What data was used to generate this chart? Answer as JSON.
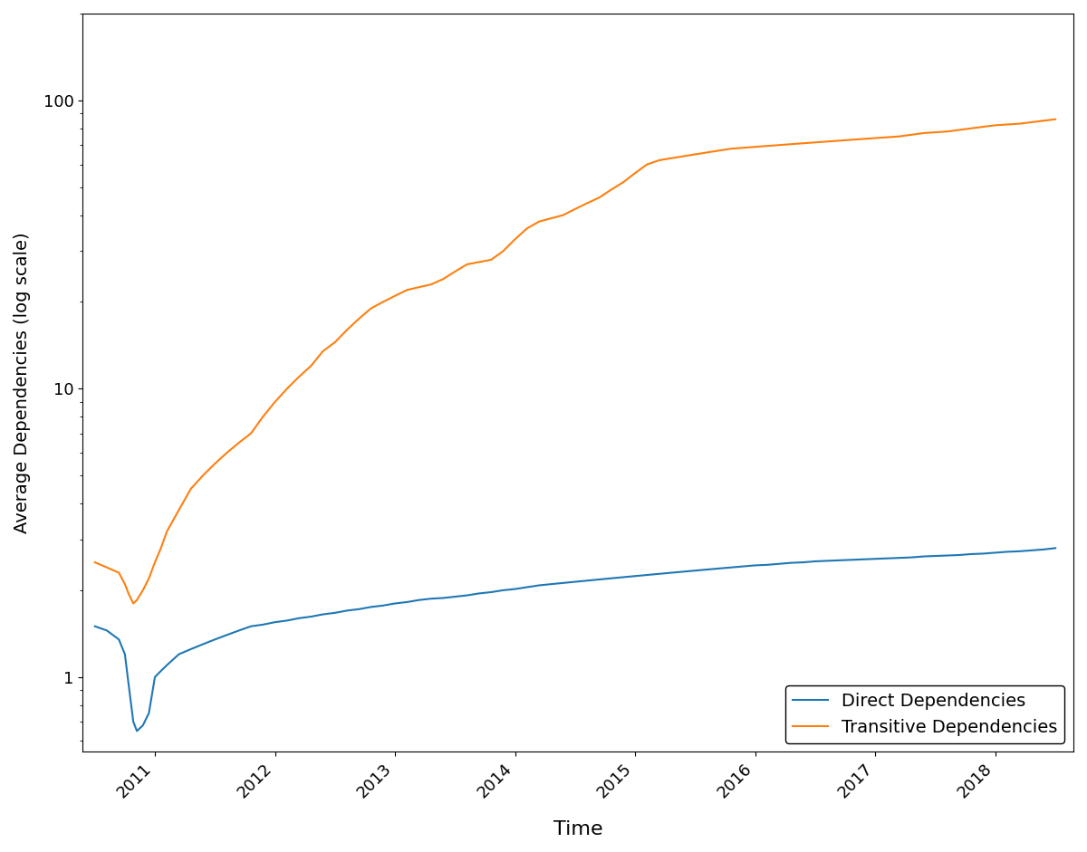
{
  "title": "",
  "xlabel": "Time",
  "ylabel": "Average Dependencies (log scale)",
  "legend_labels": [
    "Direct Dependencies",
    "Transitive Dependencies"
  ],
  "line_colors": [
    "#1f77b4",
    "#ff7f0e"
  ],
  "line_width": 1.5,
  "ylim": [
    0.55,
    200
  ],
  "xlim": [
    2010.4,
    2018.65
  ],
  "xticks": [
    2011,
    2012,
    2013,
    2014,
    2015,
    2016,
    2017,
    2018
  ],
  "yticks": [
    1,
    10,
    100
  ],
  "direct_x": [
    2010.5,
    2010.6,
    2010.7,
    2010.75,
    2010.78,
    2010.82,
    2010.85,
    2010.9,
    2010.95,
    2011.0,
    2011.05,
    2011.1,
    2011.2,
    2011.3,
    2011.4,
    2011.5,
    2011.6,
    2011.7,
    2011.8,
    2011.9,
    2012.0,
    2012.1,
    2012.2,
    2012.3,
    2012.4,
    2012.5,
    2012.6,
    2012.7,
    2012.8,
    2012.9,
    2013.0,
    2013.1,
    2013.2,
    2013.3,
    2013.4,
    2013.5,
    2013.6,
    2013.7,
    2013.8,
    2013.9,
    2014.0,
    2014.1,
    2014.2,
    2014.3,
    2014.4,
    2014.5,
    2014.6,
    2014.7,
    2014.8,
    2014.9,
    2015.0,
    2015.1,
    2015.2,
    2015.3,
    2015.4,
    2015.5,
    2015.6,
    2015.7,
    2015.8,
    2015.9,
    2016.0,
    2016.1,
    2016.2,
    2016.3,
    2016.4,
    2016.5,
    2016.6,
    2016.7,
    2016.8,
    2016.9,
    2017.0,
    2017.1,
    2017.2,
    2017.3,
    2017.4,
    2017.5,
    2017.6,
    2017.7,
    2017.8,
    2017.9,
    2018.0,
    2018.1,
    2018.2,
    2018.3,
    2018.4,
    2018.5
  ],
  "direct_y": [
    1.5,
    1.45,
    1.35,
    1.2,
    0.95,
    0.7,
    0.65,
    0.68,
    0.75,
    1.0,
    1.05,
    1.1,
    1.2,
    1.25,
    1.3,
    1.35,
    1.4,
    1.45,
    1.5,
    1.52,
    1.55,
    1.57,
    1.6,
    1.62,
    1.65,
    1.67,
    1.7,
    1.72,
    1.75,
    1.77,
    1.8,
    1.82,
    1.85,
    1.87,
    1.88,
    1.9,
    1.92,
    1.95,
    1.97,
    2.0,
    2.02,
    2.05,
    2.08,
    2.1,
    2.12,
    2.14,
    2.16,
    2.18,
    2.2,
    2.22,
    2.24,
    2.26,
    2.28,
    2.3,
    2.32,
    2.34,
    2.36,
    2.38,
    2.4,
    2.42,
    2.44,
    2.45,
    2.47,
    2.49,
    2.5,
    2.52,
    2.53,
    2.54,
    2.55,
    2.56,
    2.57,
    2.58,
    2.59,
    2.6,
    2.62,
    2.63,
    2.64,
    2.65,
    2.67,
    2.68,
    2.7,
    2.72,
    2.73,
    2.75,
    2.77,
    2.8
  ],
  "transitive_x": [
    2010.5,
    2010.6,
    2010.7,
    2010.75,
    2010.78,
    2010.82,
    2010.85,
    2010.9,
    2010.95,
    2011.0,
    2011.05,
    2011.1,
    2011.2,
    2011.3,
    2011.4,
    2011.5,
    2011.6,
    2011.7,
    2011.8,
    2011.9,
    2012.0,
    2012.1,
    2012.2,
    2012.3,
    2012.4,
    2012.5,
    2012.6,
    2012.7,
    2012.8,
    2012.9,
    2013.0,
    2013.1,
    2013.2,
    2013.3,
    2013.4,
    2013.5,
    2013.6,
    2013.7,
    2013.8,
    2013.9,
    2014.0,
    2014.1,
    2014.2,
    2014.3,
    2014.4,
    2014.5,
    2014.6,
    2014.7,
    2014.8,
    2014.9,
    2015.0,
    2015.1,
    2015.2,
    2015.3,
    2015.4,
    2015.5,
    2015.6,
    2015.7,
    2015.8,
    2015.9,
    2016.0,
    2016.1,
    2016.2,
    2016.3,
    2016.4,
    2016.5,
    2016.6,
    2016.7,
    2016.8,
    2016.9,
    2017.0,
    2017.1,
    2017.2,
    2017.3,
    2017.4,
    2017.5,
    2017.6,
    2017.7,
    2017.8,
    2017.9,
    2018.0,
    2018.1,
    2018.2,
    2018.3,
    2018.4,
    2018.5
  ],
  "transitive_y": [
    2.5,
    2.4,
    2.3,
    2.1,
    1.95,
    1.8,
    1.85,
    2.0,
    2.2,
    2.5,
    2.8,
    3.2,
    3.8,
    4.5,
    5.0,
    5.5,
    6.0,
    6.5,
    7.0,
    8.0,
    9.0,
    10.0,
    11.0,
    12.0,
    13.5,
    14.5,
    16.0,
    17.5,
    19.0,
    20.0,
    21.0,
    22.0,
    22.5,
    23.0,
    24.0,
    25.5,
    27.0,
    27.5,
    28.0,
    30.0,
    33.0,
    36.0,
    38.0,
    39.0,
    40.0,
    42.0,
    44.0,
    46.0,
    49.0,
    52.0,
    56.0,
    60.0,
    62.0,
    63.0,
    64.0,
    65.0,
    66.0,
    67.0,
    68.0,
    68.5,
    69.0,
    69.5,
    70.0,
    70.5,
    71.0,
    71.5,
    72.0,
    72.5,
    73.0,
    73.5,
    74.0,
    74.5,
    75.0,
    76.0,
    77.0,
    77.5,
    78.0,
    79.0,
    80.0,
    81.0,
    82.0,
    82.5,
    83.0,
    84.0,
    85.0,
    86.0
  ],
  "background_color": "#ffffff",
  "xlabel_fontsize": 16,
  "ylabel_fontsize": 14,
  "tick_fontsize": 13,
  "legend_fontsize": 14
}
